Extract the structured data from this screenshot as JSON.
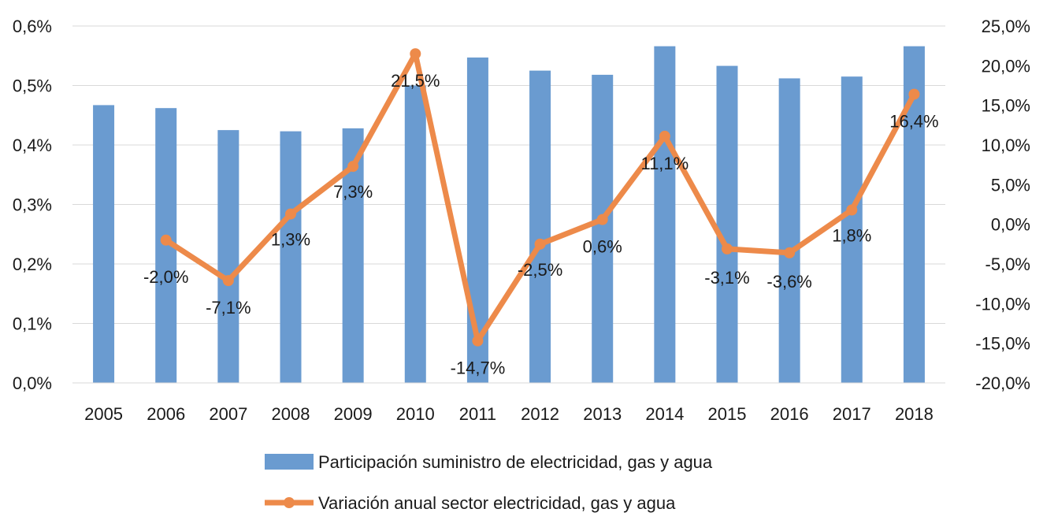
{
  "chart_data": {
    "type": "bar+line",
    "categories": [
      "2005",
      "2006",
      "2007",
      "2008",
      "2009",
      "2010",
      "2011",
      "2012",
      "2013",
      "2014",
      "2015",
      "2016",
      "2017",
      "2018"
    ],
    "series": [
      {
        "name": "Participación suministro de electricidad, gas y agua",
        "type": "bar",
        "axis": "left",
        "color": "#6a9bd0",
        "values": [
          0.467,
          0.462,
          0.425,
          0.423,
          0.428,
          0.5,
          0.547,
          0.525,
          0.518,
          0.566,
          0.533,
          0.512,
          0.515,
          0.566
        ]
      },
      {
        "name": "Variación anual sector electricidad, gas y agua",
        "type": "line",
        "axis": "right",
        "color": "#ed8a4a",
        "values": [
          null,
          -2.0,
          -7.1,
          1.3,
          7.3,
          21.5,
          -14.7,
          -2.5,
          0.6,
          11.1,
          -3.1,
          -3.6,
          1.8,
          16.4
        ],
        "labels": [
          null,
          "-2,0%",
          "-7,1%",
          "1,3%",
          "7,3%",
          "21,5%",
          "-14,7%",
          "-2,5%",
          "0,6%",
          "11,1%",
          "-3,1%",
          "-3,6%",
          "1,8%",
          "16,4%"
        ]
      }
    ],
    "y_left": {
      "lim": [
        0,
        0.6
      ],
      "ticks": [
        0,
        0.1,
        0.2,
        0.3,
        0.4,
        0.5,
        0.6
      ],
      "tick_labels": [
        "0,0%",
        "0,1%",
        "0,2%",
        "0,3%",
        "0,4%",
        "0,5%",
        "0,6%"
      ]
    },
    "y_right": {
      "lim": [
        -20,
        25
      ],
      "ticks": [
        -20,
        -15,
        -10,
        -5,
        0,
        5,
        10,
        15,
        20,
        25
      ],
      "tick_labels": [
        "-20,0%",
        "-15,0%",
        "-10,0%",
        "-5,0%",
        "0,0%",
        "5,0%",
        "10,0%",
        "15,0%",
        "20,0%",
        "25,0%"
      ]
    },
    "grid": true,
    "legend_position": "bottom"
  }
}
